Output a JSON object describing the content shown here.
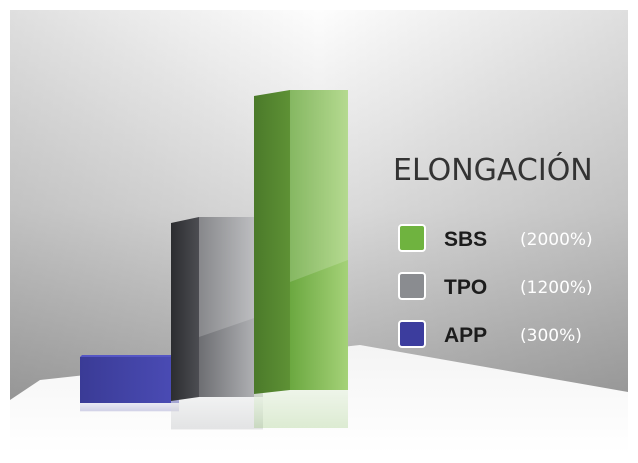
{
  "chart_data": {
    "type": "bar",
    "title": "ELONGACIÓN",
    "categories": [
      "APP",
      "TPO",
      "SBS"
    ],
    "values": [
      300,
      1200,
      2000
    ],
    "value_labels": [
      "(300%)",
      "(1200%)",
      "(2000%)"
    ],
    "unit": "%",
    "ylim": [
      0,
      2000
    ],
    "grid": false,
    "legend": {
      "placement": "right",
      "entries": [
        {
          "label": "SBS",
          "value_label": "(2000%)",
          "color": "#6fb33f"
        },
        {
          "label": "TPO",
          "value_label": "(1200%)",
          "color": "#8a8c90"
        },
        {
          "label": "APP",
          "value_label": "(300%)",
          "color": "#3c3d9e"
        }
      ]
    },
    "colors": {
      "APP": "#3c3d9e",
      "TPO": "#8a8c90",
      "SBS": "#6fb33f"
    }
  }
}
